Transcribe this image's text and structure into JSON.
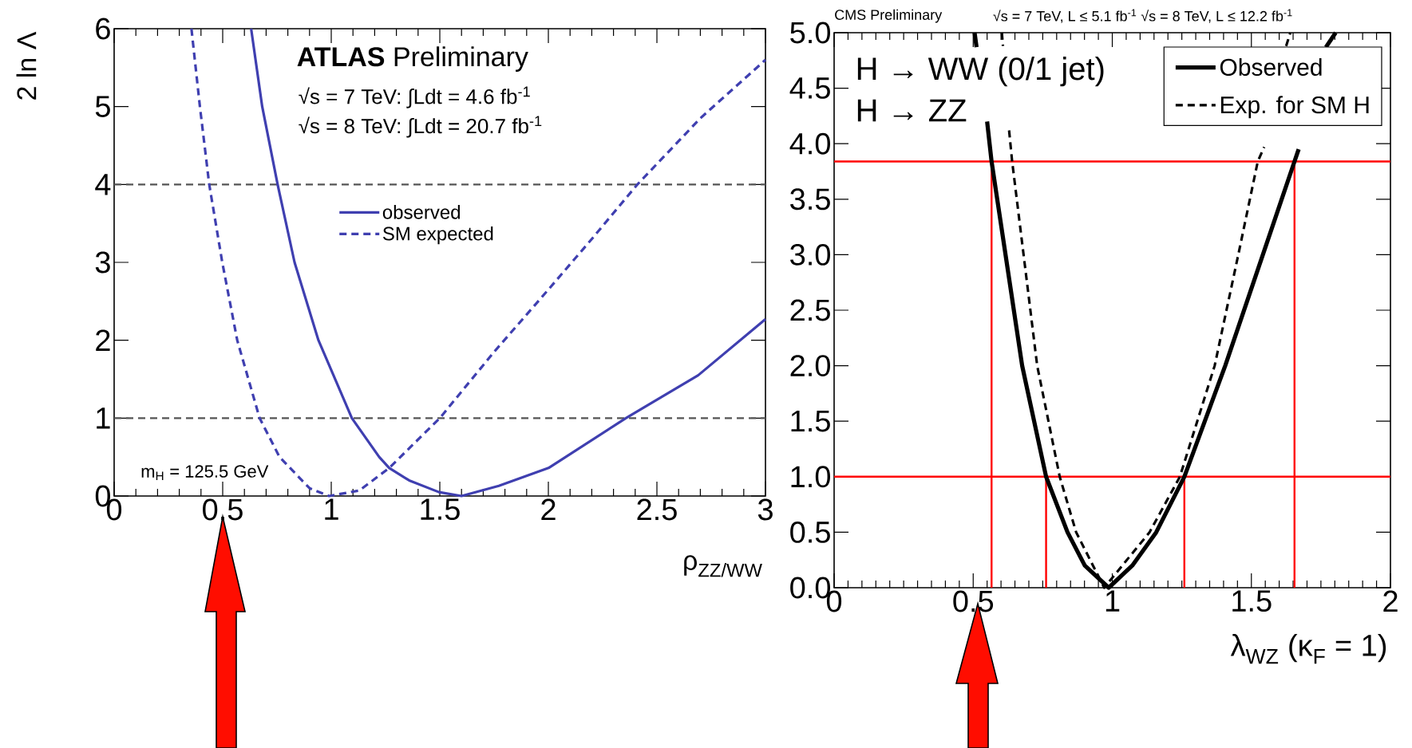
{
  "chart_data": [
    {
      "type": "line",
      "title": "**ATLAS** Preliminary",
      "xlabel": "ρ$_{ZZ/WW}$",
      "ylabel": "2 ln Λ",
      "annotations": [
        "√s = 7 TeV:  ∫Ldt = 4.6 fb$^{-1}$",
        "√s = 8 TeV:  ∫Ldt = 20.7 fb$^{-1}$",
        "m$_{H}$ = 125.5 GeV"
      ],
      "xlim": [
        0,
        3
      ],
      "ylim": [
        0,
        6
      ],
      "xticks": [
        0,
        0.5,
        1,
        1.5,
        2,
        2.5,
        3
      ],
      "yticks": [
        0,
        1,
        2,
        3,
        4,
        5,
        6
      ],
      "legend": "center",
      "ref_lines": [
        {
          "axis": "y",
          "value": 1,
          "color": "#555555",
          "line_style": "dashed"
        },
        {
          "axis": "y",
          "value": 4,
          "color": "#555555",
          "line_style": "dashed"
        }
      ],
      "series": [
        {
          "name": "observed",
          "color": "#3f3fb0",
          "line_style": "solid",
          "x": [
            0.631,
            0.682,
            0.753,
            0.831,
            0.941,
            1.095,
            1.221,
            1.267,
            1.359,
            1.496,
            1.6,
            1.772,
            2.001,
            2.357,
            2.69,
            3.0
          ],
          "values": [
            6,
            5,
            4,
            3,
            2,
            1,
            0.5,
            0.36,
            0.2,
            0.05,
            0,
            0.13,
            0.36,
            1,
            1.55,
            2.27
          ]
        },
        {
          "name": "SM expected",
          "color": "#3f3fb0",
          "line_style": "dashed",
          "x": [
            0.356,
            0.395,
            0.438,
            0.498,
            0.567,
            0.67,
            0.762,
            0.9,
            0.99,
            1.129,
            1.267,
            1.5,
            1.75,
            2.0,
            2.2,
            2.41,
            2.7,
            3.0
          ],
          "values": [
            6,
            5,
            4,
            3,
            2,
            1,
            0.5,
            0.1,
            0,
            0.07,
            0.36,
            1,
            1.85,
            2.65,
            3.3,
            4,
            4.85,
            5.6
          ]
        }
      ]
    },
    {
      "type": "line",
      "title": "CMS Preliminary",
      "subtitle": "√s = 7 TeV, L ≤ 5.1 fb$^{-1}$  √s = 8 TeV, L ≤ 12.2 fb$^{-1}$",
      "xlabel": "λ$_{WZ}$ (κ$_{F}$ = 1)",
      "annotations": [
        "H → WW (0/1 jet)",
        "H → ZZ"
      ],
      "xlim": [
        0,
        2
      ],
      "ylim": [
        0,
        5
      ],
      "xticks": [
        0,
        0.5,
        1,
        1.5,
        2
      ],
      "yticks": [
        {
          "value": 0,
          "label": "0.0"
        },
        {
          "value": 0.5,
          "label": "0.5"
        },
        {
          "value": 1,
          "label": "1.0"
        },
        {
          "value": 1.5,
          "label": "1.5"
        },
        {
          "value": 2,
          "label": "2.0"
        },
        {
          "value": 2.5,
          "label": "2.5"
        },
        {
          "value": 3,
          "label": "3.0"
        },
        {
          "value": 3.5,
          "label": "3.5"
        },
        {
          "value": 4,
          "label": "4.0"
        },
        {
          "value": 4.5,
          "label": "4.5"
        },
        {
          "value": 5,
          "label": "5.0"
        }
      ],
      "legend": "top right",
      "ref_lines": [
        {
          "axis": "y",
          "value": 1,
          "color": "#ff0000",
          "line_style": "solid"
        },
        {
          "axis": "y",
          "value": 3.84,
          "color": "#ff0000",
          "line_style": "solid"
        }
      ],
      "series": [
        {
          "color": "#ff0000",
          "x": [
            0.566,
            0.566
          ],
          "values": [
            0,
            3.84
          ]
        },
        {
          "color": "#ff0000",
          "x": [
            0.762,
            0.762
          ],
          "values": [
            0,
            1
          ]
        },
        {
          "color": "#ff0000",
          "x": [
            1.259,
            1.259
          ],
          "values": [
            0,
            1
          ]
        },
        {
          "color": "#ff0000",
          "x": [
            1.655,
            1.655
          ],
          "values": [
            0,
            3.84
          ]
        },
        {
          "name": "Observed",
          "color": "#000000",
          "line_style": "solid",
          "x": [
            0.505,
            0.512,
            0.53,
            0.55,
            0.566,
            0.676,
            0.762,
            0.839,
            0.901,
            0.987,
            1.072,
            1.158,
            1.259,
            1.406,
            1.655,
            1.67,
            1.72,
            1.768,
            1.803
          ],
          "values": [
            5,
            4.87,
            null,
            4.2,
            3.84,
            2,
            1,
            0.5,
            0.2,
            0,
            0.2,
            0.5,
            1,
            2,
            3.84,
            3.95,
            null,
            4.87,
            5
          ]
        },
        {
          "name": "Exp. for SM H",
          "color": "#000000",
          "line_style": "dashed",
          "x": [
            0.603,
            0.607,
            0.615,
            0.629,
            0.64,
            0.73,
            0.811,
            0.87,
            0.971,
            1.134,
            1.243,
            1.368,
            1.453,
            1.523,
            1.546,
            1.6,
            1.625,
            1.64
          ],
          "values": [
            5,
            4.88,
            null,
            4.12,
            3.84,
            2,
            1,
            0.5,
            0,
            0.5,
            1,
            2,
            3,
            3.84,
            3.97,
            null,
            4.88,
            5
          ]
        }
      ]
    }
  ]
}
